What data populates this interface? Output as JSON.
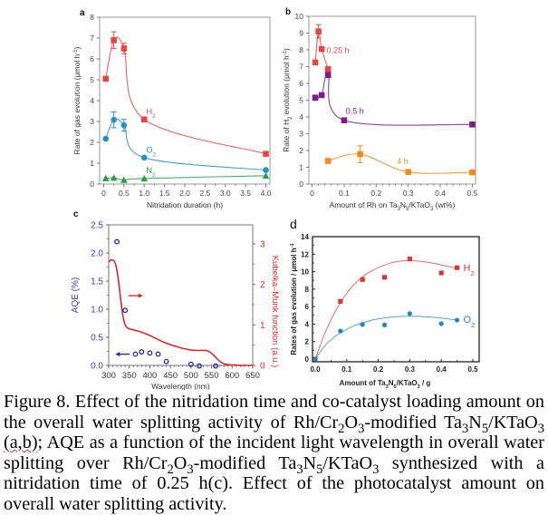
{
  "caption": {
    "parts": [
      {
        "t": "Figure 8. Effect of the nitridation time and co-catalyst loading amount on the overall water splitting activity of Rh/Cr"
      },
      {
        "sub": "2"
      },
      {
        "t": "O"
      },
      {
        "sub": "3"
      },
      {
        "t": "-modified Ta"
      },
      {
        "sub": "3"
      },
      {
        "t": "N"
      },
      {
        "sub": "5"
      },
      {
        "t": "/KTaO"
      },
      {
        "sub": "3"
      },
      {
        "t": " "
      },
      {
        "squiggle": "(a,b)"
      },
      {
        "t": "; AQE as a function of the incident light wavelength in overall water splitting over Rh/Cr"
      },
      {
        "sub": "2"
      },
      {
        "t": "O"
      },
      {
        "sub": "3"
      },
      {
        "t": "-modified Ta"
      },
      {
        "sub": "3"
      },
      {
        "t": "N"
      },
      {
        "sub": "5"
      },
      {
        "t": "/KTaO"
      },
      {
        "sub": "3"
      },
      {
        "t": " synthesized with a nitridation time of 0.25 h(c). Effect of the photocatalyst amount on overall water splitting activity."
      }
    ]
  },
  "chart_data": [
    {
      "panel": "a",
      "type": "line",
      "title": "",
      "xlabel": "Nitridation duration (h)",
      "ylabel": "Rate of gas evolution (μmol h⁻¹)",
      "xlim": [
        -0.1,
        4.1
      ],
      "ylim": [
        0,
        8
      ],
      "xticks": [
        0,
        0.5,
        1.0,
        1.5,
        2.0,
        2.5,
        3.0,
        3.5,
        4.0
      ],
      "xtick_labels": [
        "0",
        "0.5",
        "1.0",
        "1.5",
        "2.0",
        "2.5",
        "3.0",
        "3.5",
        "4.0"
      ],
      "yticks": [
        0,
        1,
        2,
        3,
        4,
        5,
        6,
        7,
        8
      ],
      "grid": false,
      "series": [
        {
          "name": "H2",
          "label": "H₂",
          "color": "#e0484a",
          "marker": "square",
          "x": [
            0.05,
            0.25,
            0.5,
            1.0,
            4.0
          ],
          "y": [
            5.05,
            6.9,
            6.5,
            3.1,
            1.45
          ],
          "err": [
            0,
            0.4,
            0.25,
            0,
            0
          ],
          "label_at": [
            1.05,
            3.35
          ]
        },
        {
          "name": "O2",
          "label": "O₂",
          "color": "#2a8fc4",
          "marker": "circle",
          "x": [
            0.05,
            0.25,
            0.5,
            1.0,
            4.0
          ],
          "y": [
            2.17,
            3.08,
            2.82,
            1.27,
            0.67
          ],
          "err": [
            0,
            0.38,
            0.28,
            0,
            0
          ],
          "label_at": [
            1.05,
            1.5
          ]
        },
        {
          "name": "N2",
          "label": "N₂",
          "color": "#2f9a4a",
          "marker": "triangle",
          "x": [
            0.05,
            0.25,
            0.5,
            1.0,
            4.0
          ],
          "y": [
            0.28,
            0.3,
            0.2,
            0.27,
            0.4
          ],
          "err": [
            0,
            0,
            0,
            0,
            0
          ],
          "label_at": [
            1.05,
            0.52
          ]
        }
      ]
    },
    {
      "panel": "b",
      "type": "line",
      "title": "",
      "xlabel": "Amount of Rh on Ta₃N₅/KTaO₃ (wt%)",
      "ylabel": "Rate of H₂ evolution (μmol h⁻¹)",
      "xlim": [
        -0.01,
        0.51
      ],
      "ylim": [
        0,
        10
      ],
      "xticks": [
        0,
        0.1,
        0.2,
        0.3,
        0.4,
        0.5
      ],
      "xtick_labels": [
        "0",
        "0.1",
        "0.2",
        "0.3",
        "0.4",
        "0.5"
      ],
      "yticks": [
        0,
        1,
        2,
        3,
        4,
        5,
        6,
        7,
        8,
        9,
        10
      ],
      "grid": false,
      "series": [
        {
          "name": "0.25 h",
          "label": "0.25 h",
          "color": "#e0484a",
          "marker": "square",
          "x": [
            0.01,
            0.02,
            0.03,
            0.05
          ],
          "y": [
            7.25,
            9.1,
            8.05,
            6.85
          ],
          "err": [
            0,
            0.4,
            0,
            0
          ],
          "label_at": [
            0.045,
            7.8
          ]
        },
        {
          "name": "0.5 h",
          "label": "0.5 h",
          "color": "#7a1f8a",
          "marker": "square",
          "x": [
            0.01,
            0.03,
            0.05,
            0.1,
            0.5
          ],
          "y": [
            5.15,
            5.3,
            6.5,
            3.8,
            3.55
          ],
          "err": [
            0,
            0,
            0,
            0,
            0
          ],
          "label_at": [
            0.105,
            4.2
          ]
        },
        {
          "name": "4 h",
          "label": "4 h",
          "color": "#ee8a1e",
          "marker": "square",
          "x": [
            0.05,
            0.15,
            0.3,
            0.5
          ],
          "y": [
            1.38,
            1.78,
            0.72,
            0.7
          ],
          "err": [
            0,
            0.5,
            0,
            0
          ],
          "label_at": [
            0.265,
            1.2
          ]
        }
      ]
    },
    {
      "panel": "c",
      "type": "scatter",
      "title": "",
      "xlabel": "Wavelength (nm)",
      "ylabel": "AQE (%)",
      "ylabel_right": "Kubelka–Munk function (a.u.)",
      "xlim": [
        300,
        650
      ],
      "ylim": [
        0,
        2.5
      ],
      "ylim_right": [
        0,
        3.0
      ],
      "xticks": [
        300,
        350,
        400,
        450,
        500,
        550,
        600,
        650
      ],
      "yticks": [
        0.0,
        0.5,
        1.0,
        1.5,
        2.0,
        2.5
      ],
      "ytick_labels": [
        "0.0",
        "0.5",
        "1.0",
        "1.5",
        "2.0",
        "2.5"
      ],
      "yticks_right": [
        0,
        1,
        2,
        3
      ],
      "grid": false,
      "left_color": "#3a3ab8",
      "right_color": "#d42a2a",
      "series": [
        {
          "name": "AQE",
          "axis": "left",
          "color": "#2a2aa0",
          "marker": "open-circle",
          "x": [
            320,
            340,
            365,
            380,
            400,
            420,
            440,
            500,
            520,
            560
          ],
          "y": [
            2.2,
            0.98,
            0.2,
            0.24,
            0.22,
            0.2,
            0.07,
            0.02,
            -0.01,
            -0.01
          ]
        },
        {
          "name": "Kubelka–Munk",
          "axis": "right",
          "color": "#d42a2a",
          "marker": "none",
          "x": [
            300,
            305,
            310,
            315,
            320,
            325,
            330,
            335,
            340,
            345,
            350,
            360,
            370,
            380,
            390,
            400,
            410,
            420,
            430,
            440,
            450,
            460,
            470,
            480,
            490,
            500,
            510,
            520,
            530,
            540,
            550,
            560,
            570,
            580,
            590,
            600,
            610,
            620,
            630,
            640,
            650
          ],
          "y": [
            2.55,
            2.6,
            2.6,
            2.55,
            2.35,
            2.0,
            1.55,
            1.2,
            1.0,
            0.93,
            0.9,
            0.88,
            0.85,
            0.82,
            0.78,
            0.74,
            0.69,
            0.64,
            0.59,
            0.55,
            0.51,
            0.48,
            0.45,
            0.42,
            0.4,
            0.38,
            0.37,
            0.37,
            0.37,
            0.36,
            0.3,
            0.2,
            0.1,
            0.04,
            0.02,
            0.01,
            0.01,
            0.0,
            0.0,
            0.0,
            0.0
          ]
        }
      ],
      "annotations": [
        {
          "type": "arrow",
          "direction": "right",
          "color": "#d42a2a",
          "x": 348,
          "y_left": 1.24
        },
        {
          "type": "arrow",
          "direction": "left",
          "color": "#2a2aa0",
          "x": 360,
          "y_left": 0.2
        }
      ]
    },
    {
      "panel": "d",
      "type": "scatter",
      "title": "",
      "xlabel": "Amount of Ta₃N₅/KTaO₃ / g",
      "ylabel": "Rates of gas evolution / μmol h⁻¹",
      "xlim": [
        -0.01,
        0.52
      ],
      "ylim": [
        -0.4,
        14
      ],
      "xticks": [
        0.0,
        0.1,
        0.2,
        0.3,
        0.4,
        0.5
      ],
      "xtick_labels": [
        "0.0",
        "0.1",
        "0.2",
        "0.3",
        "0.4",
        "0.5"
      ],
      "yticks": [
        0,
        2,
        4,
        6,
        8,
        10,
        12,
        14
      ],
      "grid": false,
      "series": [
        {
          "name": "H2",
          "label": "H₂",
          "color": "#d23a3a",
          "marker": "square",
          "x": [
            0.0,
            0.08,
            0.15,
            0.22,
            0.3,
            0.4,
            0.45
          ],
          "y": [
            0.0,
            6.6,
            9.1,
            9.35,
            11.45,
            9.85,
            10.45
          ],
          "fit_x": [
            0,
            0.03,
            0.06,
            0.09,
            0.12,
            0.15,
            0.18,
            0.21,
            0.24,
            0.27,
            0.3,
            0.33,
            0.36,
            0.39,
            0.42,
            0.45
          ],
          "fit_y": [
            0,
            2.9,
            5.2,
            7.0,
            8.4,
            9.4,
            10.1,
            10.6,
            11.0,
            11.2,
            11.25,
            11.2,
            11.05,
            10.85,
            10.6,
            10.35
          ],
          "label_at": [
            0.47,
            10.5
          ]
        },
        {
          "name": "O2",
          "label": "O₂",
          "color": "#1f84c0",
          "marker": "circle",
          "x": [
            0.0,
            0.08,
            0.15,
            0.22,
            0.3,
            0.4,
            0.45
          ],
          "y": [
            0.0,
            3.2,
            3.95,
            3.9,
            5.2,
            4.05,
            4.45
          ],
          "fit_x": [
            0,
            0.03,
            0.06,
            0.09,
            0.12,
            0.15,
            0.18,
            0.21,
            0.24,
            0.27,
            0.3,
            0.33,
            0.36,
            0.39,
            0.42,
            0.45
          ],
          "fit_y": [
            0,
            1.5,
            2.5,
            3.2,
            3.75,
            4.15,
            4.45,
            4.65,
            4.8,
            4.88,
            4.9,
            4.88,
            4.82,
            4.72,
            4.6,
            4.45
          ],
          "label_at": [
            0.47,
            4.55
          ]
        }
      ]
    }
  ]
}
